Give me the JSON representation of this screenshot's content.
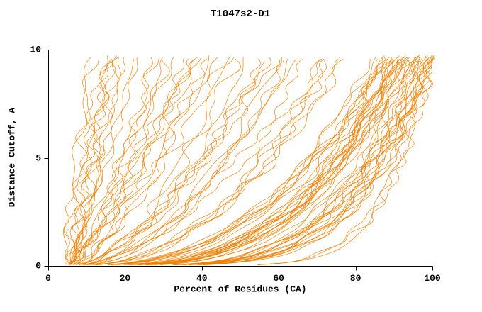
{
  "chart_data": {
    "type": "line",
    "title": "T1047s2-D1",
    "xlabel": "Percent of Residues (CA)",
    "ylabel": "Distance Cutoff, A",
    "xlim": [
      0,
      100
    ],
    "ylim": [
      0,
      10
    ],
    "x_ticks": [
      0,
      20,
      40,
      60,
      80,
      100
    ],
    "y_ticks": [
      0,
      5,
      10
    ],
    "grid": false,
    "legend": false,
    "background": "#ffffff",
    "axis_color": "#000000",
    "line_color": "#ee8000",
    "curve_top_cutoff": 9.7,
    "n_curves": 92,
    "seed": 7,
    "curve_groups_format": [
      "percent_at_cutoff_0",
      "percent_at_top_cutoff",
      "shape_gamma",
      "count"
    ],
    "curve_groups": [
      [
        5,
        12,
        1.3,
        2
      ],
      [
        6,
        14,
        1.2,
        2
      ],
      [
        5,
        16,
        1.1,
        2
      ],
      [
        7,
        18,
        1.0,
        2
      ],
      [
        6,
        20,
        1.0,
        2
      ],
      [
        5,
        24,
        0.9,
        2
      ],
      [
        6,
        28,
        0.85,
        2
      ],
      [
        5,
        32,
        0.8,
        3
      ],
      [
        7,
        36,
        0.8,
        3
      ],
      [
        6,
        40,
        0.75,
        3
      ],
      [
        8,
        44,
        0.7,
        3
      ],
      [
        6,
        50,
        0.6,
        3
      ],
      [
        7,
        55,
        0.6,
        3
      ],
      [
        6,
        60,
        0.55,
        3
      ],
      [
        8,
        65,
        0.5,
        3
      ],
      [
        7,
        70,
        0.5,
        3
      ],
      [
        6,
        75,
        0.45,
        3
      ],
      [
        5,
        85,
        0.4,
        4
      ],
      [
        6,
        88,
        0.35,
        5
      ],
      [
        7,
        90,
        0.3,
        6
      ],
      [
        5,
        92,
        0.3,
        6
      ],
      [
        6,
        94,
        0.28,
        6
      ],
      [
        8,
        96,
        0.25,
        6
      ],
      [
        6,
        98,
        0.22,
        6
      ],
      [
        7,
        100,
        0.2,
        6
      ],
      [
        8,
        100,
        0.13,
        3
      ]
    ]
  }
}
